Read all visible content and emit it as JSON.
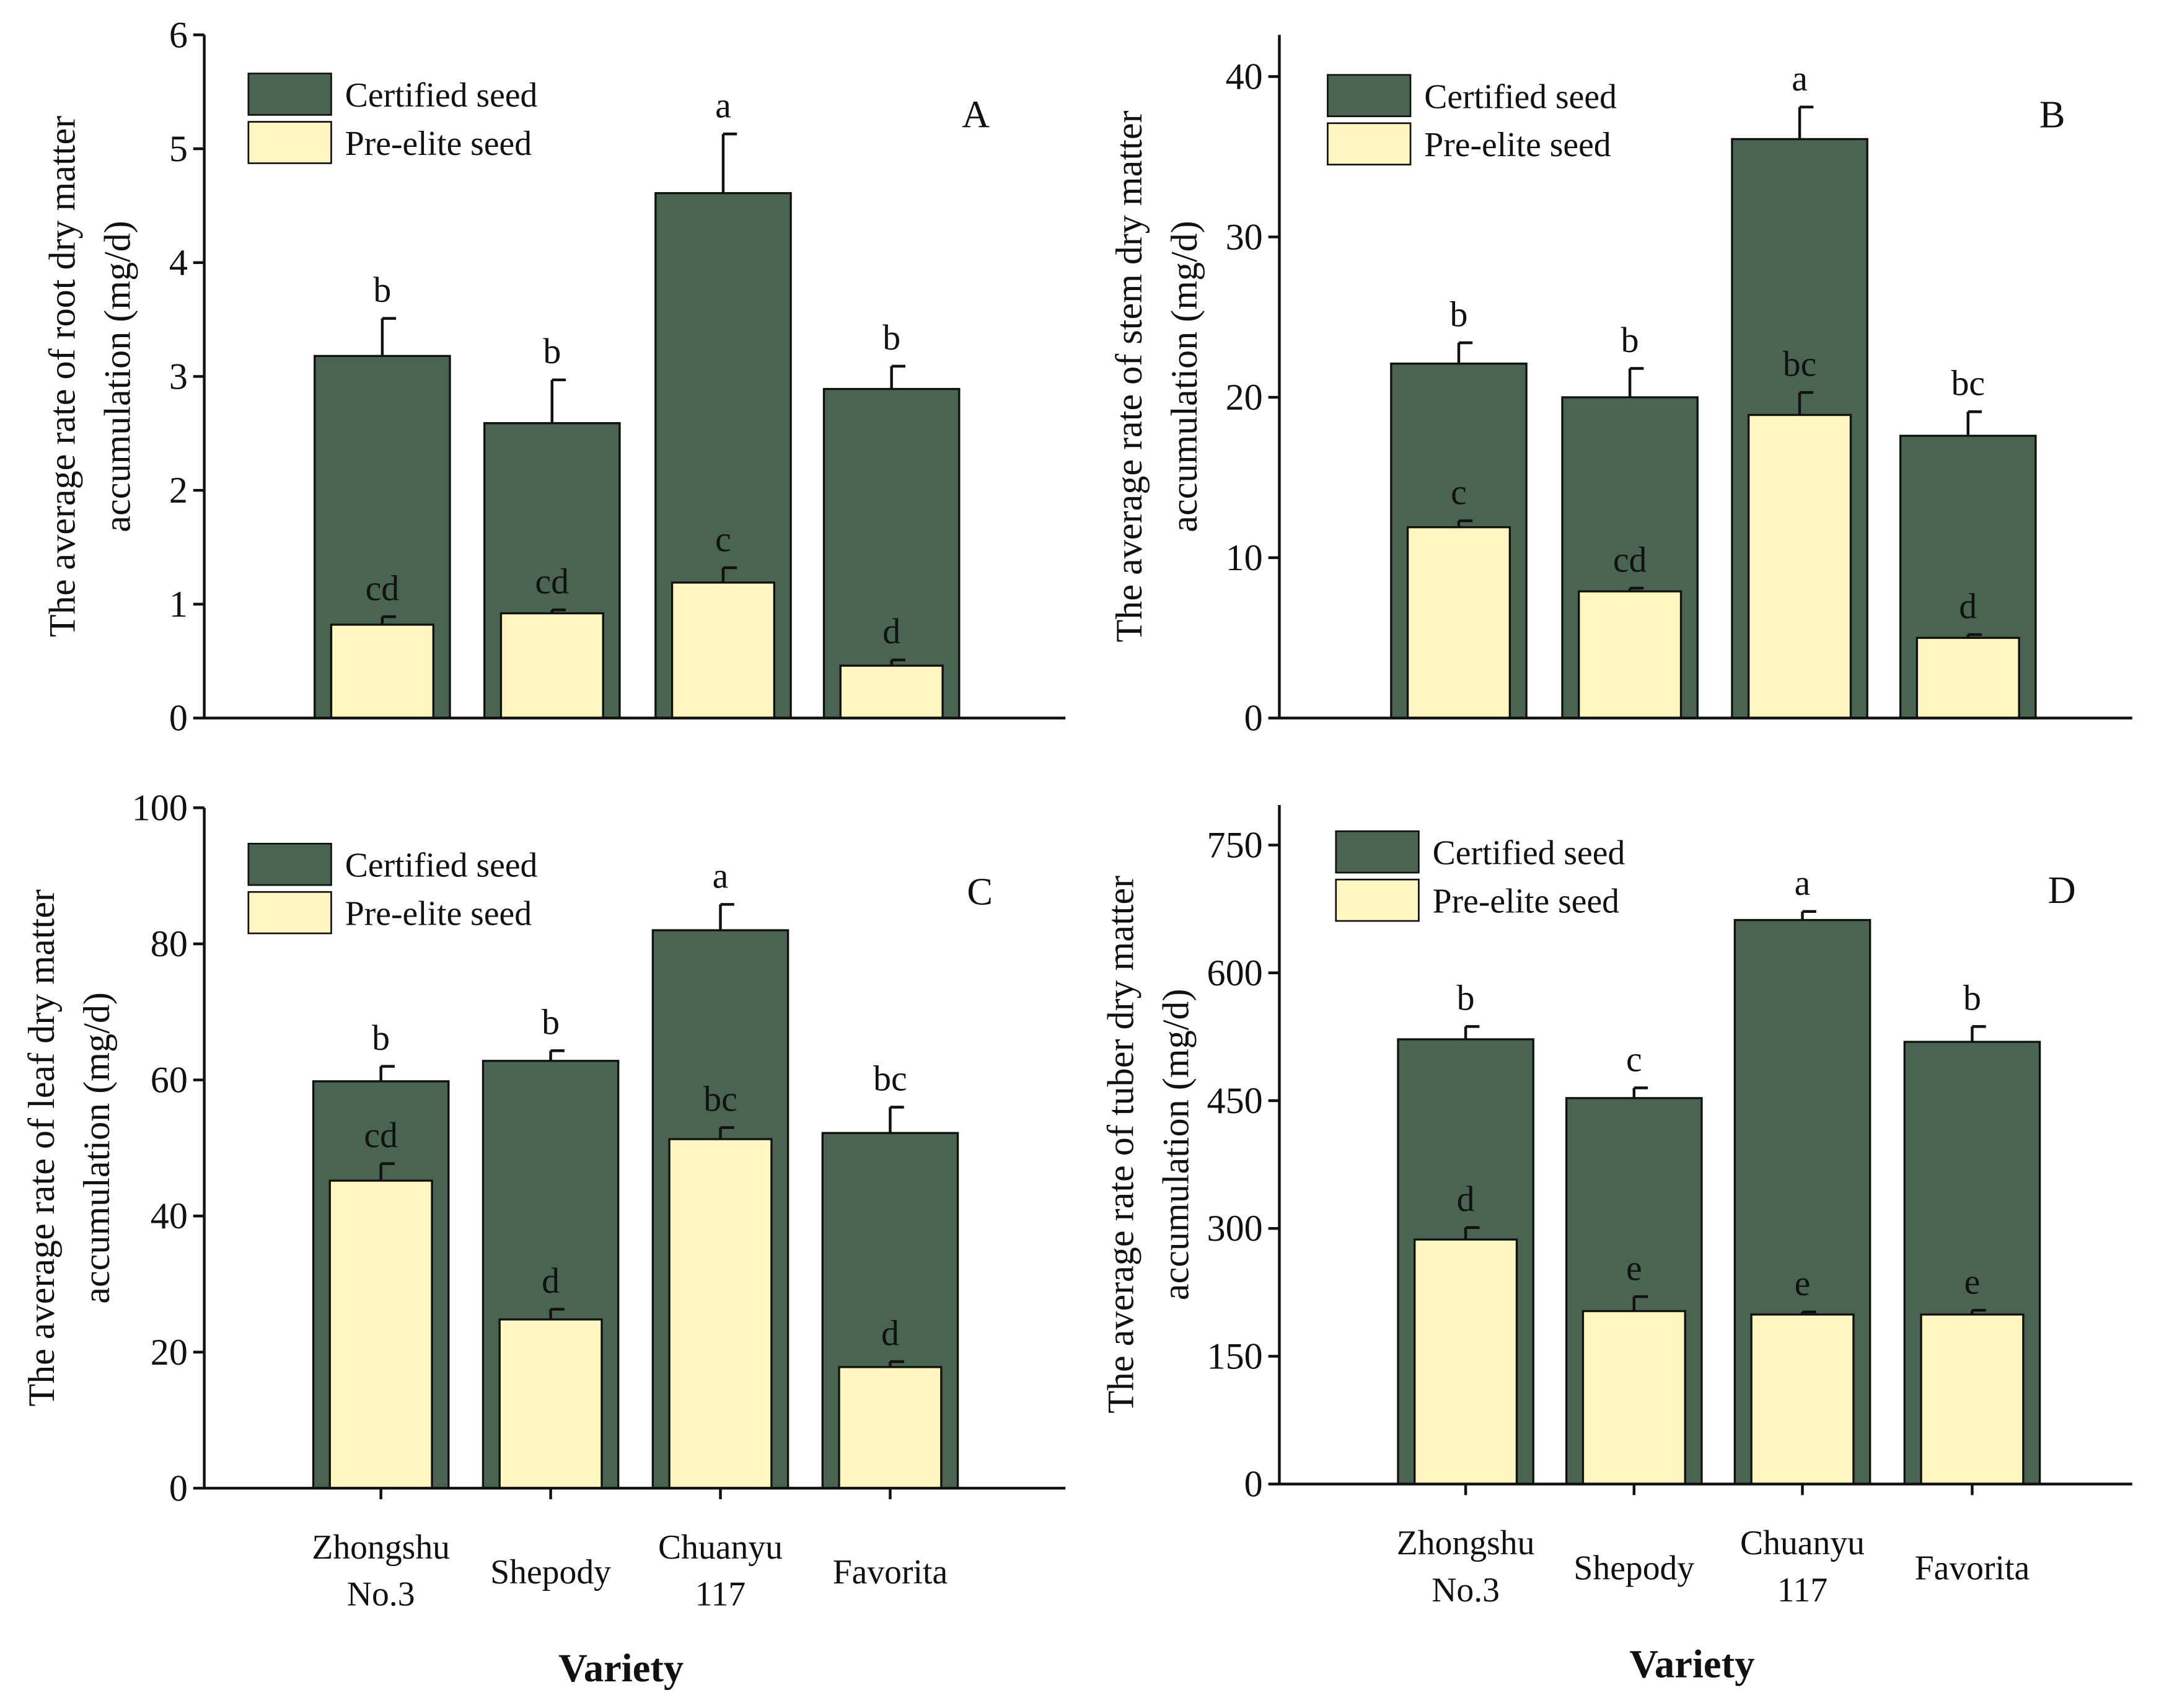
{
  "chart_data": [
    {
      "type": "bar",
      "panel": "A",
      "ylabel": [
        "The average rate of root dry matter",
        "accumulation (mg/d)"
      ],
      "xlabel": "",
      "categories": [
        "Zhongshu No.3",
        "Shepody",
        "Chuanyu 117",
        "Favorita"
      ],
      "ylim": [
        0,
        6
      ],
      "yticks": [
        0,
        1,
        2,
        3,
        4,
        5,
        6
      ],
      "legend": [
        "Certified seed",
        "Pre-elite seed"
      ],
      "legend_position": "top-left",
      "series": [
        {
          "name": "Certified seed",
          "color": "#4a6452",
          "values": [
            3.18,
            2.59,
            4.61,
            2.89
          ],
          "errors": [
            0.33,
            0.38,
            0.52,
            0.2
          ],
          "letters": [
            "b",
            "b",
            "a",
            "b"
          ]
        },
        {
          "name": "Pre-elite seed",
          "color": "#fff6c2",
          "values": [
            0.82,
            0.92,
            1.19,
            0.46
          ],
          "errors": [
            0.07,
            0.03,
            0.13,
            0.05
          ],
          "letters": [
            "cd",
            "cd",
            "c",
            "d"
          ]
        }
      ]
    },
    {
      "type": "bar",
      "panel": "B",
      "ylabel": [
        "The average rate of stem dry matter",
        "accumulation (mg/d)"
      ],
      "xlabel": "",
      "categories": [
        "Zhongshu No.3",
        "Shepody",
        "Chuanyu 117",
        "Favorita"
      ],
      "ylim": [
        0,
        42.6
      ],
      "yticks": [
        0,
        10,
        20,
        30,
        40
      ],
      "legend": [
        "Certified seed",
        "Pre-elite seed"
      ],
      "legend_position": "top-left",
      "series": [
        {
          "name": "Certified seed",
          "color": "#4a6452",
          "values": [
            22.1,
            20.0,
            36.1,
            17.6
          ],
          "errors": [
            1.3,
            1.8,
            2.0,
            1.5
          ],
          "letters": [
            "b",
            "b",
            "a",
            "bc"
          ]
        },
        {
          "name": "Pre-elite seed",
          "color": "#fff6c2",
          "values": [
            11.9,
            7.9,
            18.9,
            5.0
          ],
          "errors": [
            0.4,
            0.2,
            1.4,
            0.2
          ],
          "letters": [
            "c",
            "cd",
            "bc",
            "d"
          ]
        }
      ]
    },
    {
      "type": "bar",
      "panel": "C",
      "ylabel": [
        "The average rate of leaf dry matter",
        "accumulation (mg/d)"
      ],
      "xlabel": "Variety",
      "categories": [
        "Zhongshu No.3",
        "Shepody",
        "Chuanyu 117",
        "Favorita"
      ],
      "ylim": [
        0,
        100
      ],
      "yticks": [
        0,
        20,
        40,
        60,
        80,
        100
      ],
      "legend": [
        "Certified seed",
        "Pre-elite seed"
      ],
      "legend_position": "top-left",
      "series": [
        {
          "name": "Certified seed",
          "color": "#4a6452",
          "values": [
            59.8,
            62.8,
            82.0,
            52.2
          ],
          "errors": [
            2.2,
            1.5,
            3.8,
            3.8
          ],
          "letters": [
            "b",
            "b",
            "a",
            "bc"
          ]
        },
        {
          "name": "Pre-elite seed",
          "color": "#fff6c2",
          "values": [
            45.2,
            24.8,
            51.3,
            17.8
          ],
          "errors": [
            2.5,
            1.5,
            1.7,
            0.8
          ],
          "letters": [
            "cd",
            "d",
            "bc",
            "d"
          ]
        }
      ]
    },
    {
      "type": "bar",
      "panel": "D",
      "ylabel": [
        "The average rate of tuber dry matter",
        "accumulation (mg/d)"
      ],
      "xlabel": "Variety",
      "categories": [
        "Zhongshu No.3",
        "Shepody",
        "Chuanyu 117",
        "Favorita"
      ],
      "ylim": [
        0,
        797
      ],
      "yticks": [
        0,
        150,
        300,
        450,
        600,
        750
      ],
      "legend": [
        "Certified seed",
        "Pre-elite seed"
      ],
      "legend_position": "top-left",
      "series": [
        {
          "name": "Certified seed",
          "color": "#4a6452",
          "values": [
            522,
            453,
            662,
            519
          ],
          "errors": [
            15,
            12,
            10,
            18
          ],
          "letters": [
            "b",
            "c",
            "a",
            "b"
          ]
        },
        {
          "name": "Pre-elite seed",
          "color": "#fff6c2",
          "values": [
            287,
            203,
            199,
            199
          ],
          "errors": [
            14,
            17,
            3,
            5
          ],
          "letters": [
            "d",
            "e",
            "e",
            "e"
          ]
        }
      ]
    }
  ],
  "category_lines": [
    [
      "Zhongshu",
      "No.3"
    ],
    [
      "Shepody"
    ],
    [
      "Chuanyu",
      "117"
    ],
    [
      "Favorita"
    ]
  ]
}
